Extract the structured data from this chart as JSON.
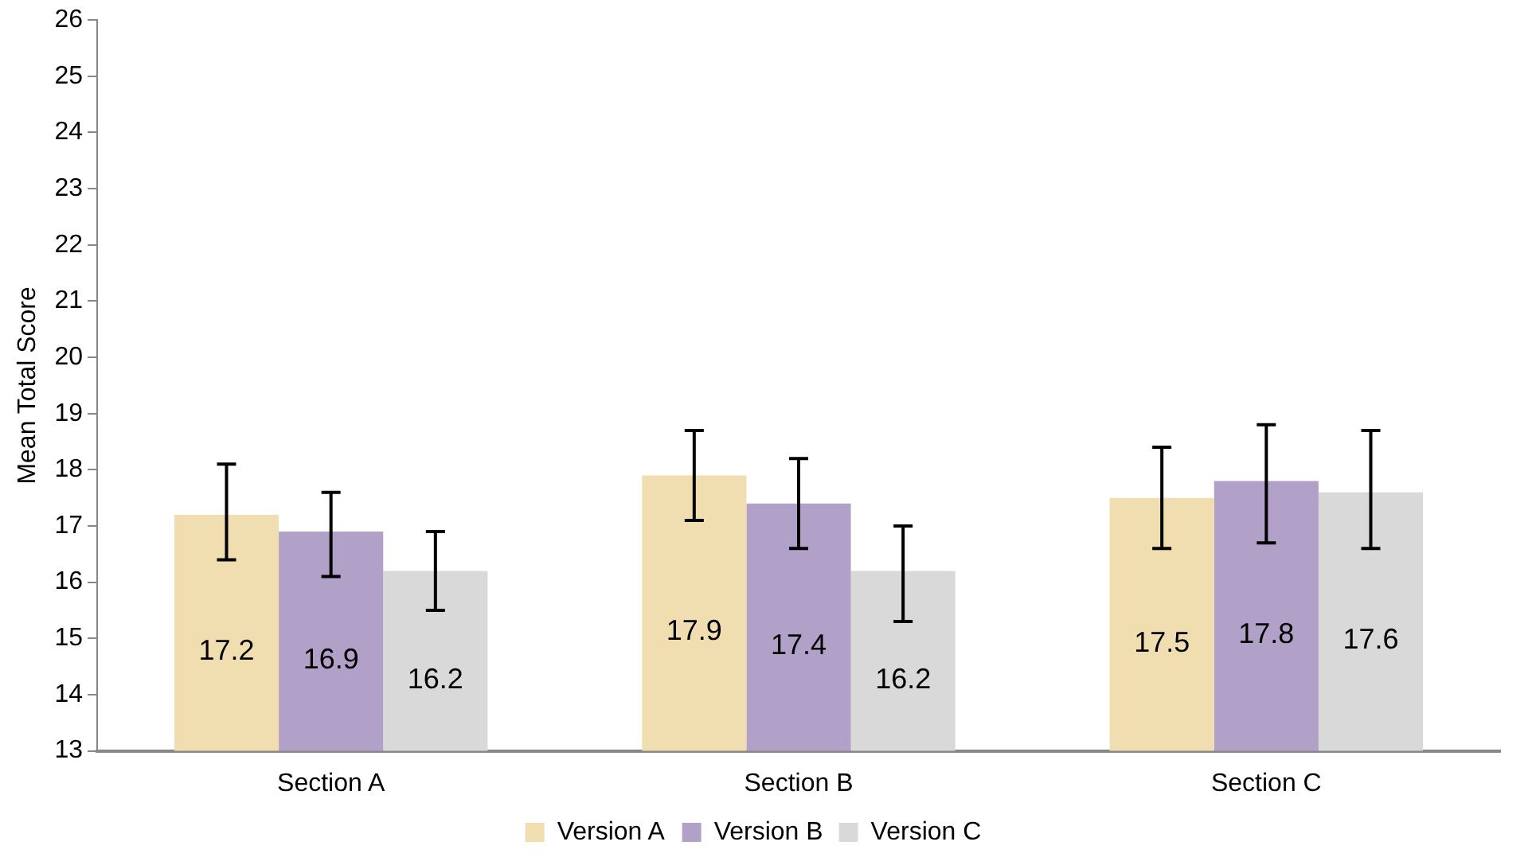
{
  "chart_data": {
    "type": "bar",
    "ylabel": "Mean Total Score",
    "categories": [
      "Section A",
      "Section B",
      "Section C"
    ],
    "series": [
      {
        "name": "Version A",
        "color": "#f0deb0",
        "values": [
          17.2,
          17.9,
          17.5
        ],
        "errors": [
          [
            16.4,
            18.1
          ],
          [
            17.1,
            18.7
          ],
          [
            16.6,
            18.4
          ]
        ]
      },
      {
        "name": "Version B",
        "color": "#b1a0c7",
        "values": [
          16.9,
          17.4,
          17.8
        ],
        "errors": [
          [
            16.1,
            17.6
          ],
          [
            16.6,
            18.2
          ],
          [
            16.7,
            18.8
          ]
        ]
      },
      {
        "name": "Version C",
        "color": "#d9d9d9",
        "values": [
          16.2,
          16.2,
          17.6
        ],
        "errors": [
          [
            15.5,
            16.9
          ],
          [
            15.3,
            17.0
          ],
          [
            16.6,
            18.7
          ]
        ]
      }
    ],
    "ylim": [
      13,
      26
    ],
    "yticks": [
      13,
      14,
      15,
      16,
      17,
      18,
      19,
      20,
      21,
      22,
      23,
      24,
      25,
      26
    ],
    "grid": false,
    "legend": "bottom",
    "data_labels": true
  }
}
